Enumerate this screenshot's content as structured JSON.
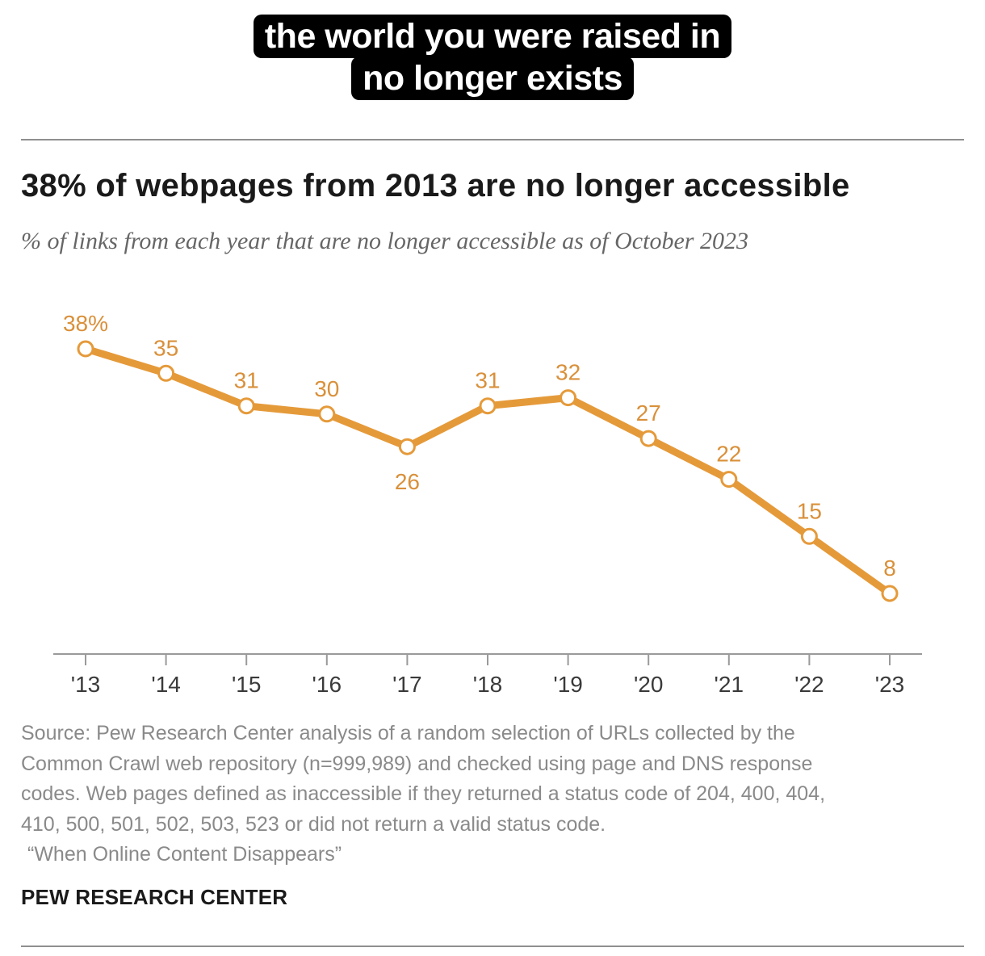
{
  "caption": {
    "line1": "the world you were raised in",
    "line2": "no longer exists"
  },
  "header": {
    "title": "38% of webpages from 2013 are no longer accessible",
    "subtitle": "% of links from each year that are no longer accessible as of October 2023"
  },
  "chart_data": {
    "type": "line",
    "title": "38% of webpages from 2013 are no longer accessible",
    "subtitle": "% of links from each year that are no longer accessible as of October 2023",
    "categories": [
      "'13",
      "'14",
      "'15",
      "'16",
      "'17",
      "'18",
      "'19",
      "'20",
      "'21",
      "'22",
      "'23"
    ],
    "values": [
      38,
      35,
      31,
      30,
      26,
      31,
      32,
      27,
      22,
      15,
      8
    ],
    "data_labels": [
      "38%",
      "35",
      "31",
      "30",
      "26",
      "31",
      "32",
      "27",
      "22",
      "15",
      "8"
    ],
    "label_positions": [
      "above",
      "above",
      "above",
      "above",
      "below",
      "above",
      "above",
      "above",
      "above",
      "above",
      "above"
    ],
    "xlabel": "",
    "ylabel": "",
    "ylim": [
      8,
      38
    ],
    "grid": false,
    "legend": "none",
    "line_color": "#e59a3a",
    "marker_fill": "#ffffff"
  },
  "footer": {
    "source_lines": [
      "Source: Pew Research Center analysis of a random selection of URLs collected by the",
      "Common Crawl web repository (n=999,989) and checked using page and DNS response",
      "codes. Web pages defined as inaccessible if they returned a status code of 204, 400, 404,",
      "410, 500, 501, 502, 503, 523 or did not return a valid status code.",
      "“When Online Content Disappears”"
    ],
    "brand": "PEW RESEARCH CENTER"
  },
  "colors": {
    "accent": "#e59a3a",
    "text_dark": "#1a1a1a",
    "text_muted": "#8a8a8a",
    "rule": "#8f8f8f"
  }
}
